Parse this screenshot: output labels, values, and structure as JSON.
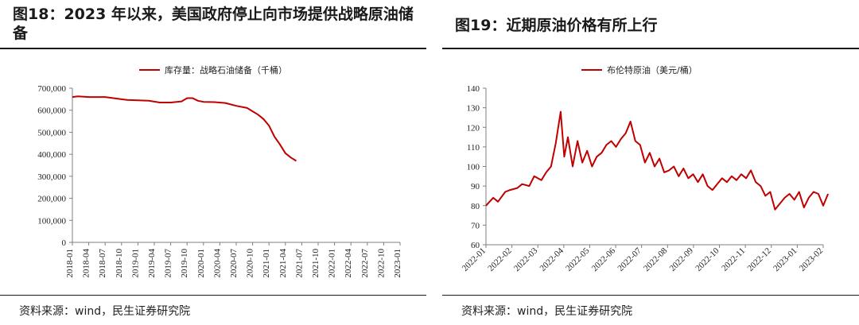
{
  "left": {
    "title": "图18：2023 年以来，美国政府停止向市场提供战略原油储备",
    "source": "资料来源：wind，民生证券研究院",
    "chart_data": {
      "type": "line",
      "title": "",
      "series": [
        {
          "name": "库存量：战略石油储备（千桶）",
          "color": "#c00000",
          "x": [
            0,
            1,
            3,
            6,
            9,
            10,
            12,
            14,
            16,
            18,
            20,
            21,
            22,
            23,
            24,
            26,
            28,
            30,
            32,
            33,
            34,
            35,
            36,
            37,
            38,
            39,
            40,
            41
          ],
          "values": [
            660000,
            663000,
            660000,
            660000,
            650000,
            647000,
            645000,
            643000,
            635000,
            635000,
            640000,
            655000,
            655000,
            643000,
            638000,
            637000,
            633000,
            620000,
            610000,
            595000,
            580000,
            560000,
            530000,
            480000,
            445000,
            405000,
            385000,
            370000
          ]
        }
      ],
      "x_tick_labels": [
        "2018-01",
        "2018-04",
        "2018-07",
        "2018-10",
        "2019-01",
        "2019-04",
        "2019-07",
        "2019-10",
        "2020-01",
        "2020-04",
        "2020-07",
        "2020-10",
        "2021-01",
        "2021-04",
        "2021-07",
        "2021-10",
        "2022-01",
        "2022-04",
        "2022-07",
        "2022-10",
        "2023-01"
      ],
      "y_ticks": [
        0,
        100000,
        200000,
        300000,
        400000,
        500000,
        600000,
        700000
      ],
      "y_tick_labels": [
        "0",
        "100,000",
        "200,000",
        "300,000",
        "400,000",
        "500,000",
        "600,000",
        "700,000"
      ],
      "ylim": [
        0,
        700000
      ],
      "legend": "top-center"
    }
  },
  "right": {
    "title": "图19：近期原油价格有所上行",
    "source": "资料来源：wind，民生证券研究院",
    "chart_data": {
      "type": "line",
      "title": "",
      "series": [
        {
          "name": "布伦特原油（美元/桶）",
          "color": "#c00000",
          "x": [
            0,
            0.3,
            0.5,
            0.8,
            1,
            1.3,
            1.5,
            1.8,
            2,
            2.3,
            2.5,
            2.7,
            2.9,
            3.1,
            3.25,
            3.4,
            3.6,
            3.8,
            4,
            4.2,
            4.4,
            4.6,
            4.8,
            5,
            5.2,
            5.4,
            5.6,
            5.8,
            6,
            6.2,
            6.4,
            6.6,
            6.8,
            7,
            7.2,
            7.4,
            7.6,
            7.8,
            8,
            8.2,
            8.4,
            8.6,
            8.8,
            9,
            9.2,
            9.4,
            9.6,
            9.8,
            10,
            10.2,
            10.4,
            10.6,
            10.8,
            11,
            11.2,
            11.4,
            11.6,
            11.8,
            12,
            12.2,
            12.4,
            12.6,
            12.8,
            13,
            13.2,
            13.4,
            13.6,
            13.8,
            14,
            14.2
          ],
          "values": [
            80,
            84,
            82,
            87,
            88,
            89,
            91,
            90,
            95,
            93,
            97,
            100,
            112,
            128,
            105,
            115,
            100,
            113,
            102,
            108,
            100,
            105,
            107,
            111,
            113,
            110,
            114,
            117,
            123,
            113,
            111,
            102,
            107,
            100,
            104,
            97,
            98,
            100,
            95,
            99,
            94,
            96,
            92,
            96,
            90,
            88,
            91,
            94,
            92,
            95,
            93,
            96,
            94,
            98,
            92,
            90,
            85,
            87,
            78,
            81,
            84,
            86,
            83,
            87,
            79,
            84,
            87,
            86,
            80,
            86
          ]
        }
      ],
      "x_tick_labels": [
        "2022-01",
        "2022-02",
        "2022-03",
        "2022-04",
        "2022-05",
        "2022-06",
        "2022-07",
        "2022-08",
        "2022-09",
        "2022-10",
        "2022-11",
        "2022-12",
        "2023-01",
        "2023-02"
      ],
      "y_ticks": [
        60,
        70,
        80,
        90,
        100,
        110,
        120,
        130,
        140
      ],
      "y_tick_labels": [
        "60",
        "70",
        "80",
        "90",
        "100",
        "110",
        "120",
        "130",
        "140"
      ],
      "ylim": [
        60,
        140
      ],
      "legend": "top-center"
    }
  }
}
